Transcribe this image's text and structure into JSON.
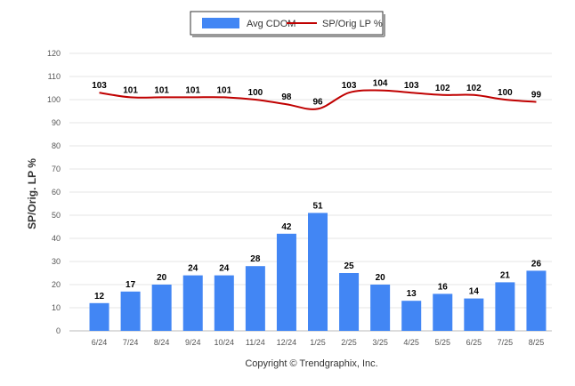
{
  "chart_data": {
    "type": "bar",
    "categories": [
      "6/24",
      "7/24",
      "8/24",
      "9/24",
      "10/24",
      "11/24",
      "12/24",
      "1/25",
      "2/25",
      "3/25",
      "4/25",
      "5/25",
      "6/25",
      "7/25",
      "8/25"
    ],
    "series": [
      {
        "name": "Avg CDOM",
        "kind": "bar",
        "color": "#4286f4",
        "values": [
          12,
          17,
          20,
          24,
          24,
          28,
          42,
          51,
          25,
          20,
          13,
          16,
          14,
          21,
          26
        ]
      },
      {
        "name": "SP/Orig LP %",
        "kind": "line",
        "color": "#c00000",
        "values": [
          103,
          101,
          101,
          101,
          101,
          100,
          98,
          96,
          103,
          104,
          103,
          102,
          102,
          100,
          99
        ]
      }
    ],
    "ylabel": "SP/Orig. LP %",
    "ylim": [
      0,
      120
    ],
    "yticks": [
      0,
      10,
      20,
      30,
      40,
      50,
      60,
      70,
      80,
      90,
      100,
      110,
      120
    ],
    "grid": true,
    "legend_position": "top-center"
  },
  "footer": {
    "copyright": "Copyright © Trendgraphix, Inc."
  }
}
